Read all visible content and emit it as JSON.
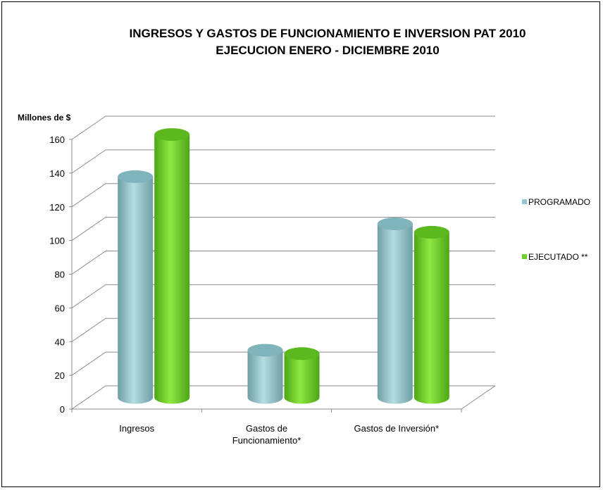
{
  "chart_data": {
    "type": "bar",
    "title": [
      "INGRESOS Y GASTOS DE FUNCIONAMIENTO E INVERSION PAT 2010",
      "EJECUCION  ENERO - DICIEMBRE 2010"
    ],
    "ylabel": "Millones de $",
    "xlabel": "",
    "ylim": [
      0,
      160
    ],
    "yticks": [
      0,
      20,
      40,
      60,
      80,
      100,
      120,
      140,
      160
    ],
    "categories": [
      [
        "Ingresos"
      ],
      [
        "Gastos de",
        "Funcionamiento*"
      ],
      [
        "Gastos de Inversión*"
      ]
    ],
    "series": [
      {
        "name": "PROGRAMADO",
        "values": [
          131,
          28,
          103
        ],
        "color": "#93C6CC"
      },
      {
        "name": "EJECUTADO **",
        "values": [
          156,
          26,
          98
        ],
        "color": "#6FD02A"
      }
    ],
    "legend_position": "right",
    "grid": true,
    "style": "3d-cylinder"
  }
}
